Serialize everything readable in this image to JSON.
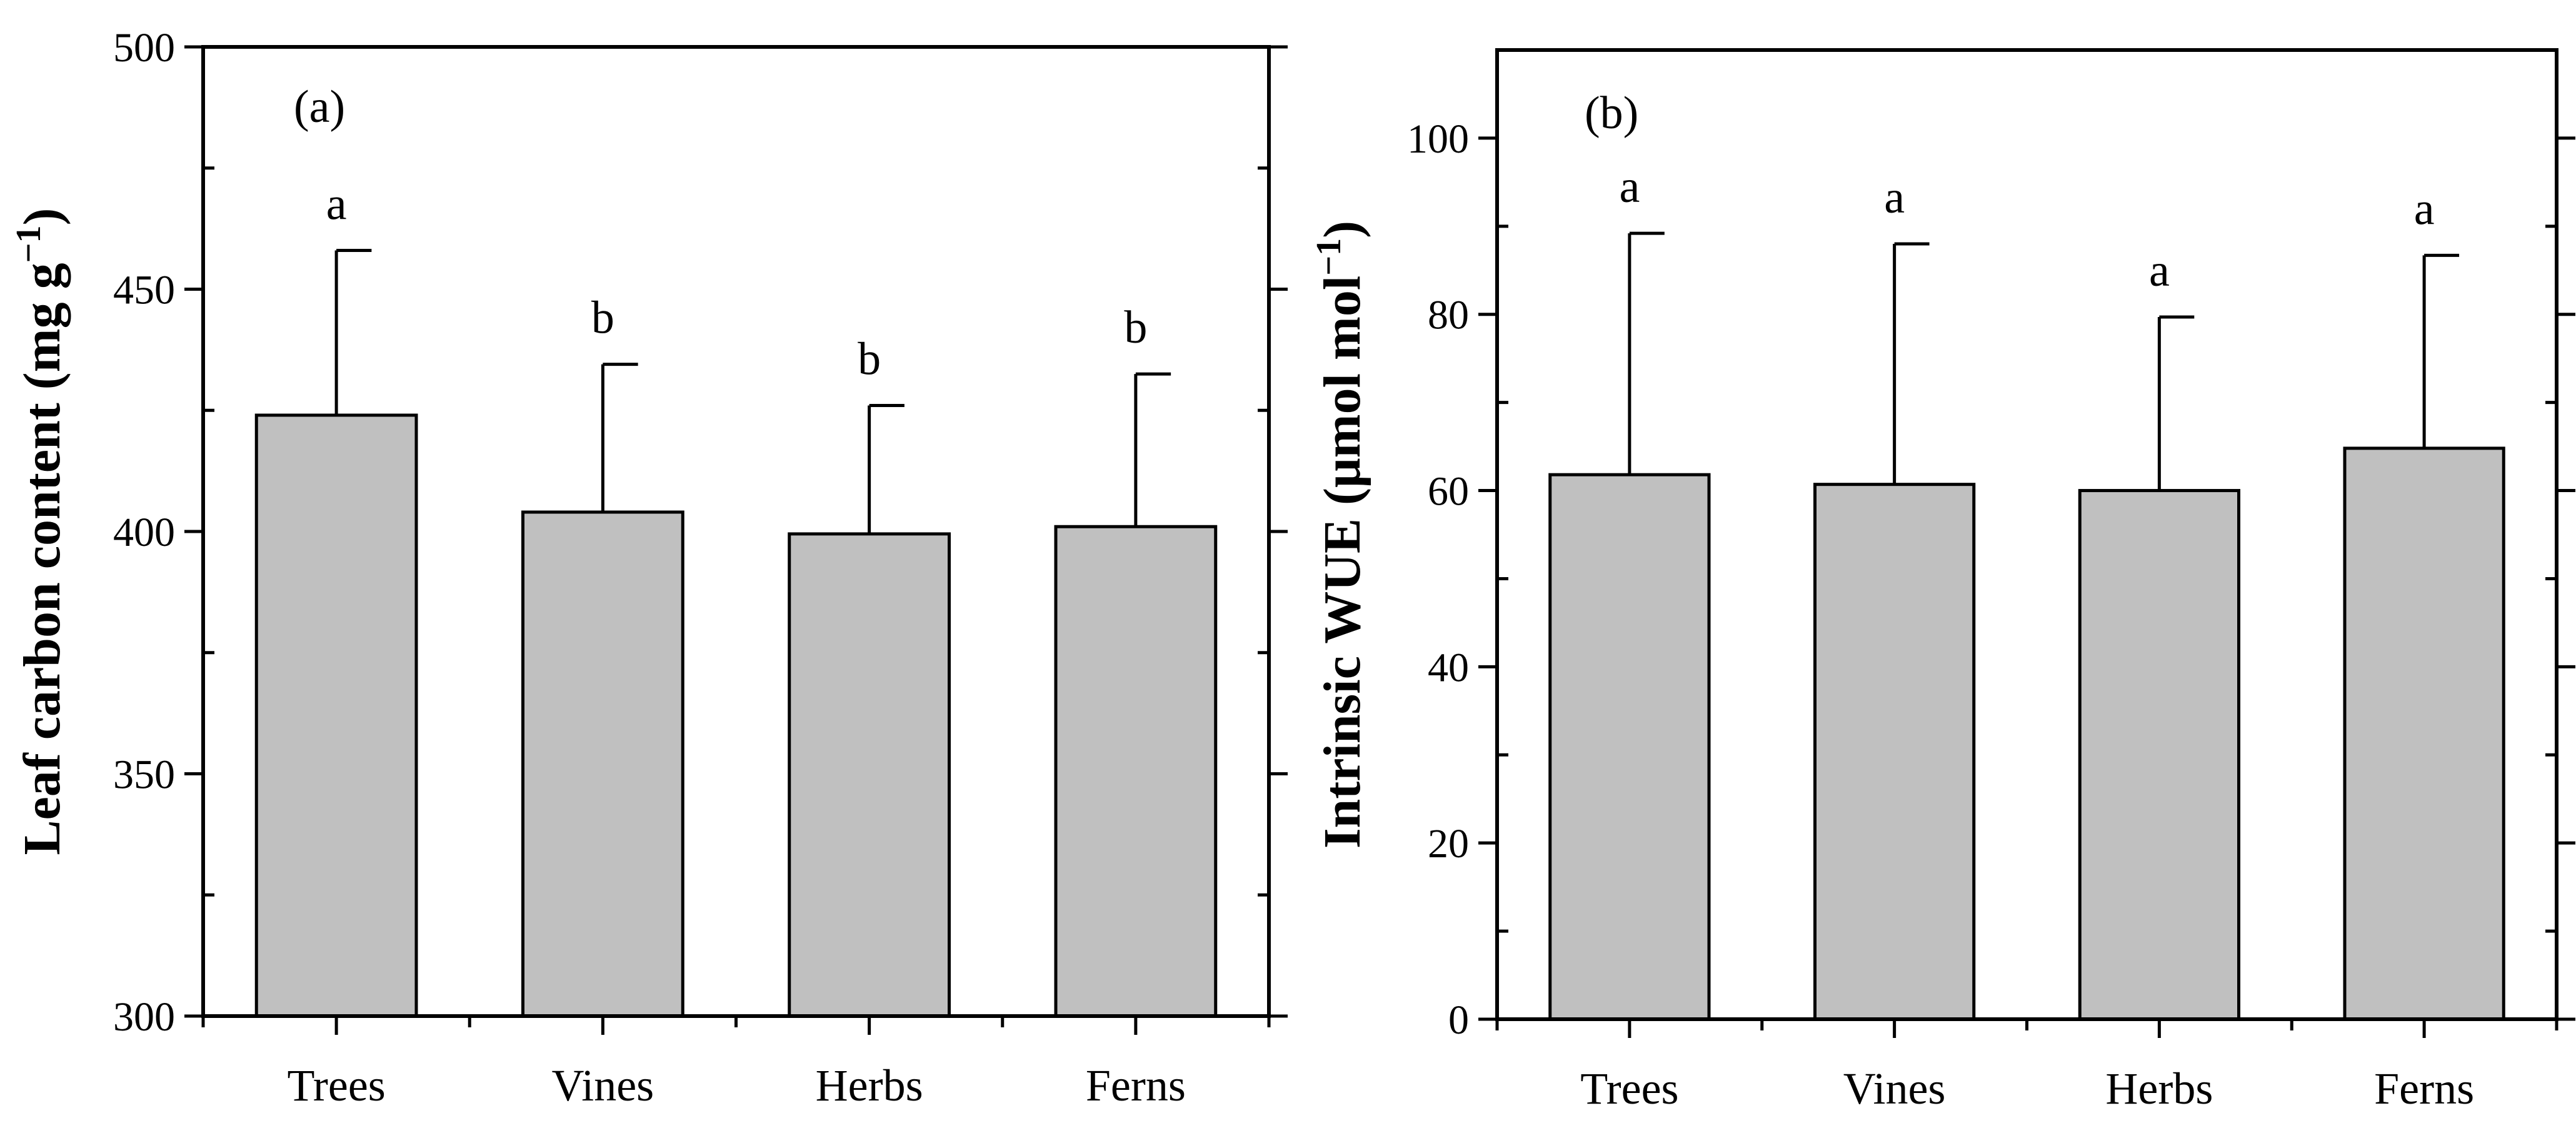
{
  "chart_data": [
    {
      "type": "bar",
      "panel_label": "(a)",
      "categories": [
        "Trees",
        "Vines",
        "Herbs",
        "Ferns"
      ],
      "values": [
        424,
        404,
        399.5,
        401
      ],
      "error_upper": [
        458,
        434.5,
        426,
        432.5
      ],
      "significance": [
        "a",
        "b",
        "b",
        "b"
      ],
      "ylabel": "Leaf  carbon  content (mg g",
      "ylabel_suffix": ")",
      "ylabel_sup": "−1",
      "ylim": [
        300,
        500
      ],
      "yticks": [
        300,
        350,
        400,
        450,
        500
      ],
      "ytick_labels": [
        "300",
        "350",
        "400",
        "450",
        "500"
      ],
      "yminor": [
        325,
        375,
        425,
        475
      ]
    },
    {
      "type": "bar",
      "panel_label": "(b)",
      "categories": [
        "Trees",
        "Vines",
        "Herbs",
        "Ferns"
      ],
      "values": [
        61.8,
        60.7,
        60,
        64.8
      ],
      "error_upper": [
        89.2,
        88,
        79.7,
        86.7
      ],
      "significance": [
        "a",
        "a",
        "a",
        "a"
      ],
      "ylabel": "Intrinsic WUE (μmol mol",
      "ylabel_suffix": ")",
      "ylabel_sup": "−1",
      "ylim": [
        0,
        110
      ],
      "yticks": [
        0,
        20,
        40,
        60,
        80,
        100
      ],
      "ytick_labels": [
        "0",
        "20",
        "40",
        "60",
        "80",
        "100"
      ],
      "yminor": [
        10,
        30,
        50,
        70,
        90
      ]
    }
  ]
}
